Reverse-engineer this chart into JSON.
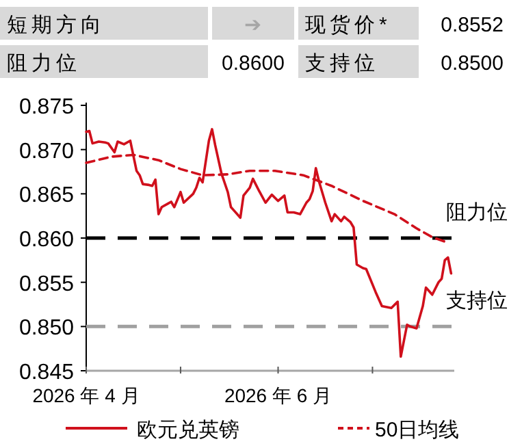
{
  "chart_data": {
    "type": "line",
    "xlim": [
      "2026-04-01",
      "2026-07-27"
    ],
    "xticks": [
      {
        "value": "2026-04-01",
        "label": "2026 年 4 月"
      },
      {
        "value": "2026-05-01",
        "label": null
      },
      {
        "value": "2026-06-01",
        "label": "2026 年 6 月"
      },
      {
        "value": "2026-07-01",
        "label": null
      }
    ],
    "ylim": [
      0.845,
      0.875
    ],
    "yticks": [
      0.845,
      {
        "value": 0.85,
        "label": "0.850"
      },
      0.855,
      {
        "value": 0.86,
        "label": "0.860"
      },
      0.865,
      {
        "value": 0.87,
        "label": "0.870"
      },
      0.875
    ],
    "grid": false,
    "legend": "bottom",
    "marker": "none",
    "series": [
      {
        "name": "欧元兑英镑",
        "color": "#d0101c",
        "line_style": "solid",
        "x": [
          "2026-04-01",
          "2026-04-02",
          "2026-04-03",
          "2026-04-05",
          "2026-04-07",
          "2026-04-08",
          "2026-04-10",
          "2026-04-11",
          "2026-04-13",
          "2026-04-15",
          "2026-04-17",
          "2026-04-18",
          "2026-04-19",
          "2026-04-21",
          "2026-04-22",
          "2026-04-23",
          "2026-04-24",
          "2026-04-25",
          "2026-04-27",
          "2026-04-28",
          "2026-04-29",
          "2026-05-01",
          "2026-05-02",
          "2026-05-05",
          "2026-05-06",
          "2026-05-07",
          "2026-05-08",
          "2026-05-10",
          "2026-05-11",
          "2026-05-12",
          "2026-05-14",
          "2026-05-16",
          "2026-05-17",
          "2026-05-18",
          "2026-05-20",
          "2026-05-21",
          "2026-05-23",
          "2026-05-24",
          "2026-05-26",
          "2026-05-28",
          "2026-05-30",
          "2026-06-01",
          "2026-06-03",
          "2026-06-04",
          "2026-06-06",
          "2026-06-08",
          "2026-06-10",
          "2026-06-11",
          "2026-06-12",
          "2026-06-13",
          "2026-06-14",
          "2026-06-16",
          "2026-06-18",
          "2026-06-19",
          "2026-06-21",
          "2026-06-22",
          "2026-06-24",
          "2026-06-25",
          "2026-06-26",
          "2026-06-28",
          "2026-06-29",
          "2026-07-02",
          "2026-07-04",
          "2026-07-07",
          "2026-07-09",
          "2026-07-10",
          "2026-07-12",
          "2026-07-13",
          "2026-07-15",
          "2026-07-17",
          "2026-07-18",
          "2026-07-20",
          "2026-07-22",
          "2026-07-23",
          "2026-07-24",
          "2026-07-25",
          "2026-07-26"
        ],
        "values": [
          0.872,
          0.8721,
          0.8707,
          0.8709,
          0.8708,
          0.8707,
          0.8697,
          0.8709,
          0.8706,
          0.871,
          0.8676,
          0.8671,
          0.8661,
          0.866,
          0.8659,
          0.8666,
          0.8627,
          0.8635,
          0.8639,
          0.8641,
          0.8635,
          0.8652,
          0.864,
          0.865,
          0.8657,
          0.8668,
          0.8663,
          0.871,
          0.8723,
          0.8705,
          0.8673,
          0.8652,
          0.8635,
          0.8631,
          0.8623,
          0.8648,
          0.8657,
          0.8667,
          0.8653,
          0.864,
          0.8649,
          0.8642,
          0.8648,
          0.8629,
          0.8629,
          0.8627,
          0.864,
          0.8644,
          0.8653,
          0.8679,
          0.8664,
          0.864,
          0.8619,
          0.8627,
          0.8619,
          0.8624,
          0.8618,
          0.8612,
          0.857,
          0.8566,
          0.8565,
          0.8539,
          0.8523,
          0.8521,
          0.8528,
          0.8466,
          0.8502,
          0.85,
          0.8498,
          0.8523,
          0.8544,
          0.8536,
          0.855,
          0.8554,
          0.8575,
          0.8578,
          0.856
        ]
      },
      {
        "name": "50日均线",
        "color": "#d0101c",
        "line_style": "dashed",
        "x": [
          "2026-04-01",
          "2026-04-09",
          "2026-04-16",
          "2026-04-24",
          "2026-05-01",
          "2026-05-08",
          "2026-05-16",
          "2026-05-23",
          "2026-05-31",
          "2026-06-09",
          "2026-06-18",
          "2026-06-28",
          "2026-07-08",
          "2026-07-15",
          "2026-07-20",
          "2026-07-24"
        ],
        "values": [
          0.8685,
          0.8692,
          0.8694,
          0.8688,
          0.8678,
          0.8671,
          0.8672,
          0.8676,
          0.8676,
          0.8671,
          0.8659,
          0.8642,
          0.8627,
          0.8611,
          0.8601,
          0.8596
        ]
      }
    ],
    "ref_lines": [
      {
        "axis": "y",
        "value": 0.86,
        "label": "阻力位",
        "color": "#000000",
        "line_style": "dashed"
      },
      {
        "axis": "y",
        "value": 0.85,
        "label": "支持位",
        "color": "#a0a0a0",
        "line_style": "dashed"
      }
    ],
    "annotations": [
      "短期方向",
      "➔",
      "现货价*",
      "0.8552",
      "阻力位",
      "0.8600",
      "支持位",
      "0.8500"
    ]
  }
}
